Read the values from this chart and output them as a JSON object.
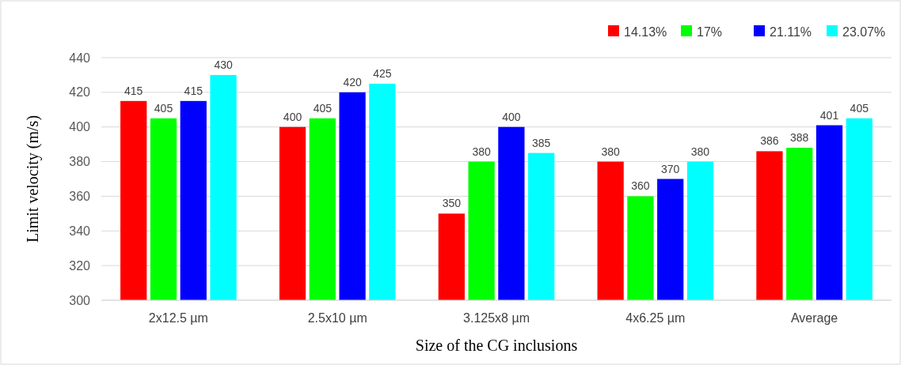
{
  "chart_data": {
    "type": "bar",
    "xlabel": "Size of the CG inclusions",
    "ylabel": "Limit velocity (m/s)",
    "categories": [
      "2x12.5 µm",
      "2.5x10 µm",
      "3.125x8 µm",
      "4x6.25 µm",
      "Average"
    ],
    "series": [
      {
        "name": "14.13%",
        "color": "#ff0000",
        "values": [
          415,
          400,
          350,
          380,
          386
        ]
      },
      {
        "name": "17%",
        "color": "#00ff00",
        "values": [
          405,
          405,
          380,
          360,
          388
        ]
      },
      {
        "name": "21.11%",
        "color": "#0000ff",
        "values": [
          415,
          420,
          400,
          370,
          401
        ]
      },
      {
        "name": "23.07%",
        "color": "#00ffff",
        "values": [
          430,
          425,
          385,
          380,
          405
        ]
      }
    ],
    "ylim": [
      300,
      440
    ],
    "yticks": [
      300,
      320,
      340,
      360,
      380,
      400,
      420,
      440
    ],
    "grid": "y",
    "legend": "top right",
    "data_labels": true
  }
}
